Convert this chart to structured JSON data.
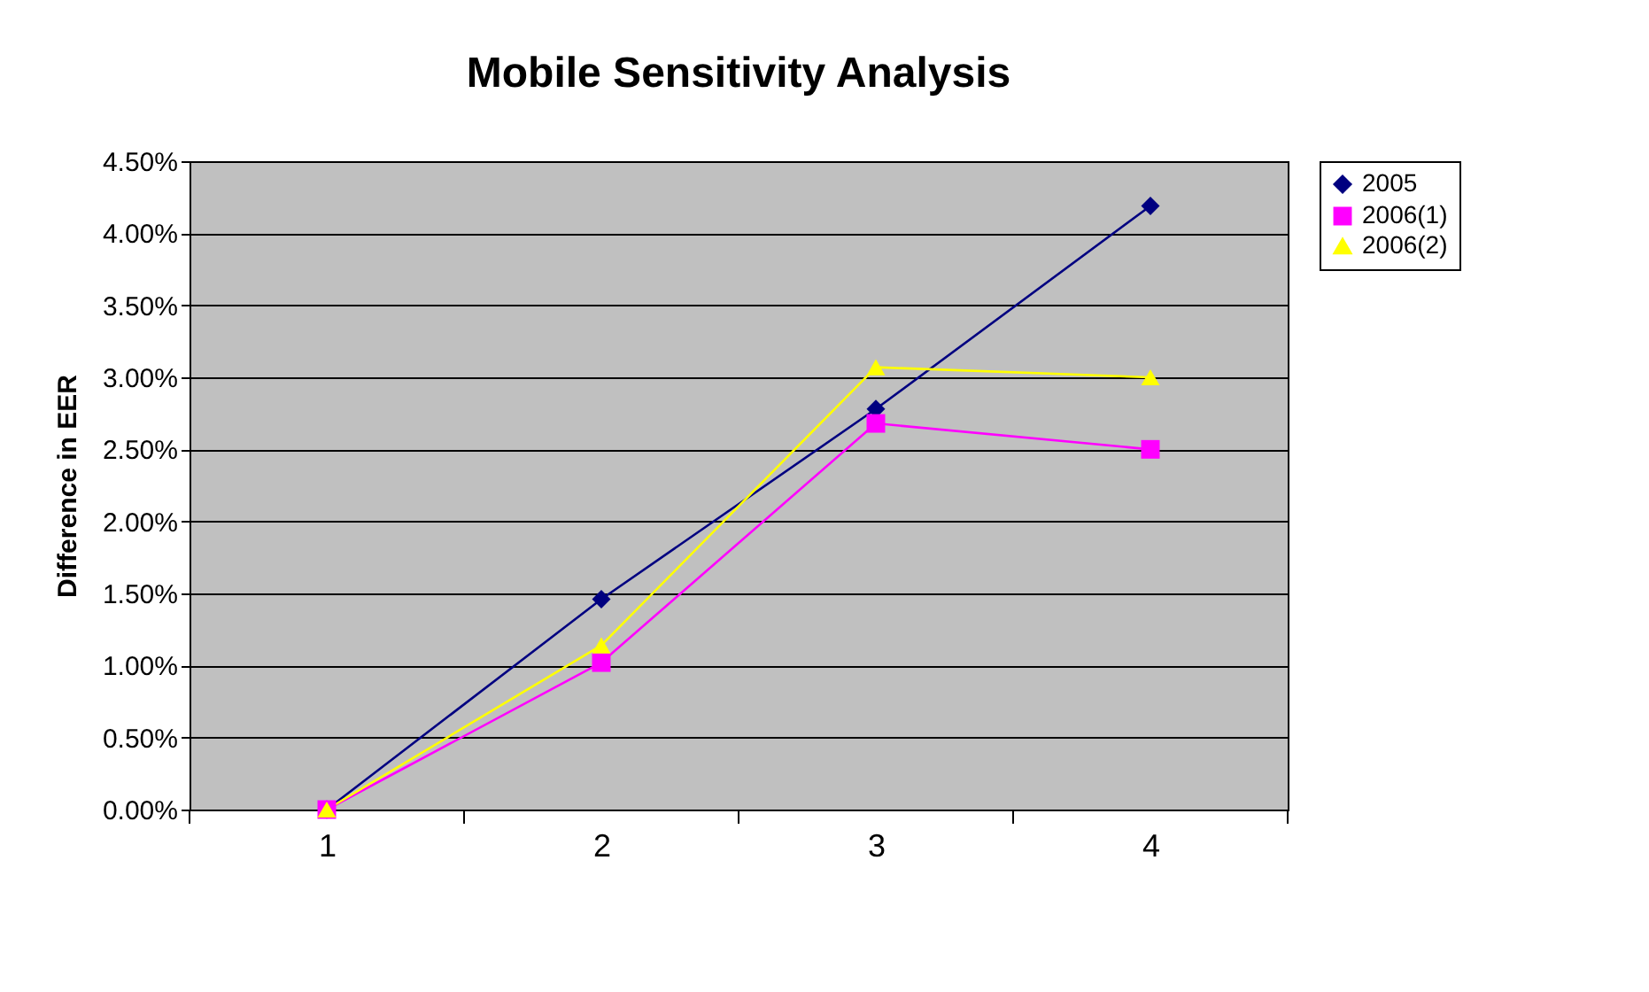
{
  "chart_data": {
    "type": "line",
    "title": "Mobile Sensitivity Analysis",
    "ylabel": "Difference in EER",
    "categories": [
      "1",
      "2",
      "3",
      "4"
    ],
    "series": [
      {
        "name": "2005",
        "color": "#000080",
        "marker": "diamond",
        "values": [
          0,
          1.46,
          2.78,
          4.19
        ]
      },
      {
        "name": "2006(1)",
        "color": "#ff00ff",
        "marker": "square",
        "values": [
          0,
          1.02,
          2.68,
          2.5
        ]
      },
      {
        "name": "2006(2)",
        "color": "#ffff00",
        "marker": "triangle",
        "values": [
          0,
          1.14,
          3.07,
          3.0
        ]
      }
    ],
    "ylim": [
      0,
      4.5
    ],
    "yticks": [
      {
        "value": 0,
        "label": "0.00%"
      },
      {
        "value": 0.5,
        "label": "0.50%"
      },
      {
        "value": 1,
        "label": "1.00%"
      },
      {
        "value": 1.5,
        "label": "1.50%"
      },
      {
        "value": 2,
        "label": "2.00%"
      },
      {
        "value": 2.5,
        "label": "2.50%"
      },
      {
        "value": 3,
        "label": "3.00%"
      },
      {
        "value": 3.5,
        "label": "3.50%"
      },
      {
        "value": 4,
        "label": "4.00%"
      },
      {
        "value": 4.5,
        "label": "4.50%"
      }
    ],
    "grid": "y",
    "legend": "right",
    "line_style": "solid"
  }
}
